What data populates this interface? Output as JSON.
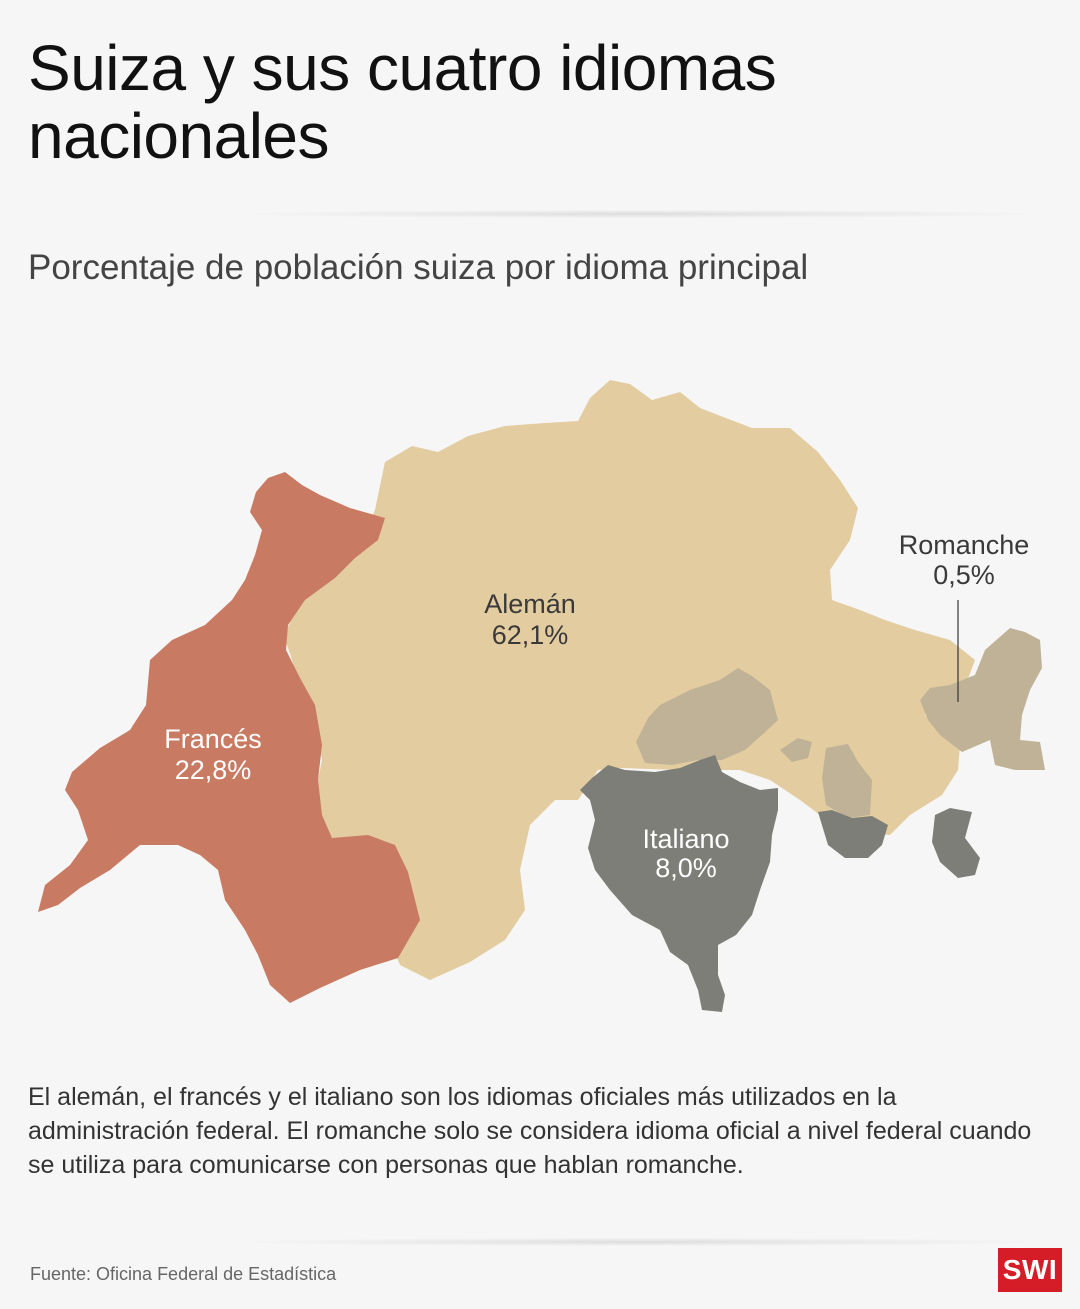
{
  "header": {
    "title": "Suiza y sus cuatro idiomas nacionales",
    "subtitle": "Porcentaje de población suiza por idioma principal"
  },
  "map": {
    "regions": [
      {
        "id": "aleman",
        "name": "Alemán",
        "value": "62,1%",
        "color": "#e3cda0"
      },
      {
        "id": "frances",
        "name": "Francés",
        "value": "22,8%",
        "color": "#c97a62"
      },
      {
        "id": "italiano",
        "name": "Italiano",
        "value": "8,0%",
        "color": "#7d7e77"
      },
      {
        "id": "romanche",
        "name": "Romanche",
        "value": "0,5%",
        "color": "#bfb296"
      }
    ]
  },
  "description": "El alemán, el francés y el italiano son los idiomas oficiales más utilizados en la administración federal. El romanche solo se considera idioma oficial a nivel federal cuando se utiliza para comunicarse con personas que hablan romanche.",
  "footer": {
    "source": "Fuente: Oficina Federal de Estadística",
    "logo": "SWI"
  }
}
